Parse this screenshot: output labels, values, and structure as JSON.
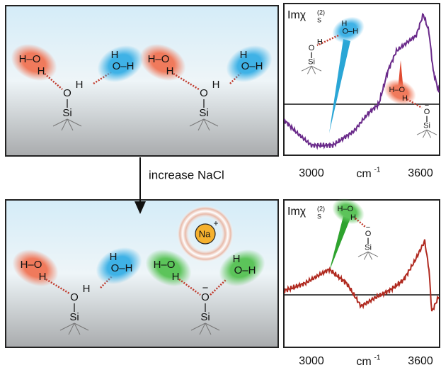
{
  "arrow_label": "increase NaCl",
  "ion": {
    "symbol": "Na",
    "charge": "+"
  },
  "atoms": {
    "hydrogen": "H",
    "oxygen": "O",
    "silicon": "Si",
    "bond_ho": "H–O",
    "bond_oh": "O–H",
    "minus": "−"
  },
  "spectra": [
    {
      "ylabel": "Imχ",
      "ylabel_sub": "S",
      "ylabel_sup": "(2)",
      "xunit": "cm",
      "xunit_sup": "-1",
      "xticks": [
        "3000",
        "3600"
      ]
    },
    {
      "ylabel": "Imχ",
      "ylabel_sub": "S",
      "ylabel_sup": "(2)",
      "xunit": "cm",
      "xunit_sup": "-1",
      "xticks": [
        "3000",
        "3600"
      ]
    }
  ]
}
